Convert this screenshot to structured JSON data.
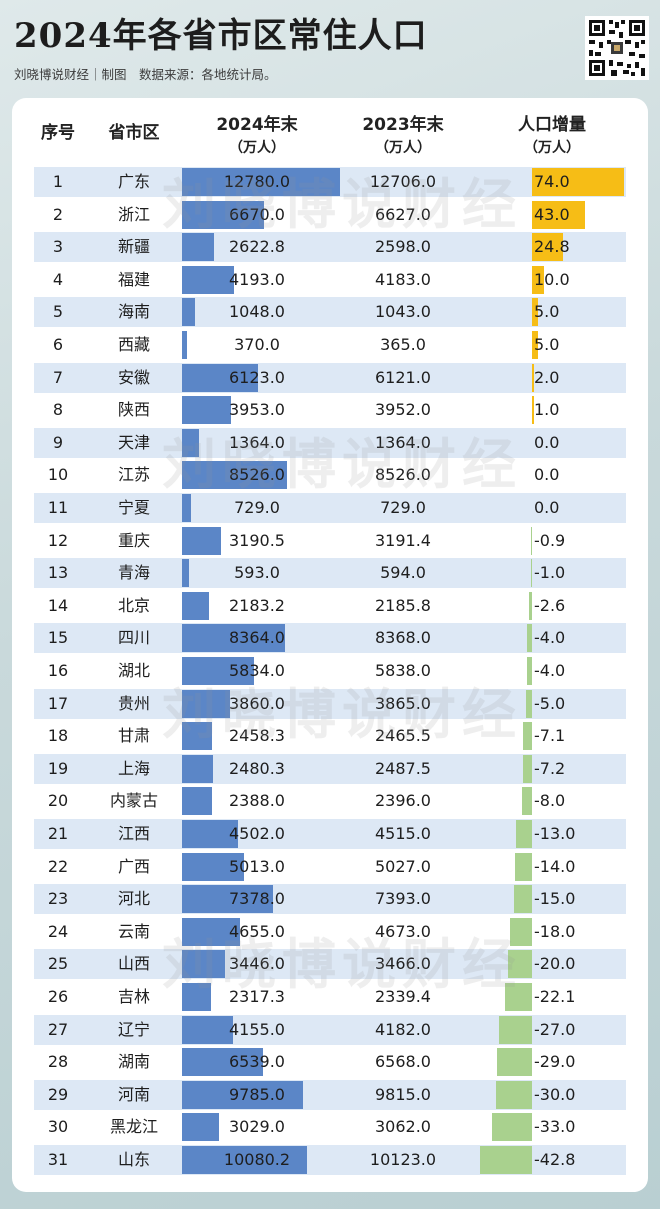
{
  "title": "2024年各省市区常住人口",
  "subtitle": "刘晓博说财经｜制图　数据来源：各地统计局。",
  "watermark": "刘晓博说财经",
  "colors": {
    "bar_2024": "#5b86c7",
    "inc_positive": "#f6bd16",
    "inc_negative": "#a9d18e",
    "row_band": "#dde8f5"
  },
  "chart_data": {
    "type": "table",
    "headers": {
      "rank": "序号",
      "region": "省市区",
      "pop2024": [
        "2024年末",
        "（万人）"
      ],
      "pop2023": [
        "2023年末",
        "（万人）"
      ],
      "increase": [
        "人口增量",
        "（万人）"
      ]
    },
    "rows": [
      {
        "rank": "1",
        "region": "广东",
        "pop2024": "12780.0",
        "pop2023": "12706.0",
        "increase": "74.0"
      },
      {
        "rank": "2",
        "region": "浙江",
        "pop2024": "6670.0",
        "pop2023": "6627.0",
        "increase": "43.0"
      },
      {
        "rank": "3",
        "region": "新疆",
        "pop2024": "2622.8",
        "pop2023": "2598.0",
        "increase": "24.8"
      },
      {
        "rank": "4",
        "region": "福建",
        "pop2024": "4193.0",
        "pop2023": "4183.0",
        "increase": "10.0"
      },
      {
        "rank": "5",
        "region": "海南",
        "pop2024": "1048.0",
        "pop2023": "1043.0",
        "increase": "5.0"
      },
      {
        "rank": "6",
        "region": "西藏",
        "pop2024": "370.0",
        "pop2023": "365.0",
        "increase": "5.0"
      },
      {
        "rank": "7",
        "region": "安徽",
        "pop2024": "6123.0",
        "pop2023": "6121.0",
        "increase": "2.0"
      },
      {
        "rank": "8",
        "region": "陕西",
        "pop2024": "3953.0",
        "pop2023": "3952.0",
        "increase": "1.0"
      },
      {
        "rank": "9",
        "region": "天津",
        "pop2024": "1364.0",
        "pop2023": "1364.0",
        "increase": "0.0"
      },
      {
        "rank": "10",
        "region": "江苏",
        "pop2024": "8526.0",
        "pop2023": "8526.0",
        "increase": "0.0"
      },
      {
        "rank": "11",
        "region": "宁夏",
        "pop2024": "729.0",
        "pop2023": "729.0",
        "increase": "0.0"
      },
      {
        "rank": "12",
        "region": "重庆",
        "pop2024": "3190.5",
        "pop2023": "3191.4",
        "increase": "-0.9"
      },
      {
        "rank": "13",
        "region": "青海",
        "pop2024": "593.0",
        "pop2023": "594.0",
        "increase": "-1.0"
      },
      {
        "rank": "14",
        "region": "北京",
        "pop2024": "2183.2",
        "pop2023": "2185.8",
        "increase": "-2.6"
      },
      {
        "rank": "15",
        "region": "四川",
        "pop2024": "8364.0",
        "pop2023": "8368.0",
        "increase": "-4.0"
      },
      {
        "rank": "16",
        "region": "湖北",
        "pop2024": "5834.0",
        "pop2023": "5838.0",
        "increase": "-4.0"
      },
      {
        "rank": "17",
        "region": "贵州",
        "pop2024": "3860.0",
        "pop2023": "3865.0",
        "increase": "-5.0"
      },
      {
        "rank": "18",
        "region": "甘肃",
        "pop2024": "2458.3",
        "pop2023": "2465.5",
        "increase": "-7.1"
      },
      {
        "rank": "19",
        "region": "上海",
        "pop2024": "2480.3",
        "pop2023": "2487.5",
        "increase": "-7.2"
      },
      {
        "rank": "20",
        "region": "内蒙古",
        "pop2024": "2388.0",
        "pop2023": "2396.0",
        "increase": "-8.0"
      },
      {
        "rank": "21",
        "region": "江西",
        "pop2024": "4502.0",
        "pop2023": "4515.0",
        "increase": "-13.0"
      },
      {
        "rank": "22",
        "region": "广西",
        "pop2024": "5013.0",
        "pop2023": "5027.0",
        "increase": "-14.0"
      },
      {
        "rank": "23",
        "region": "河北",
        "pop2024": "7378.0",
        "pop2023": "7393.0",
        "increase": "-15.0"
      },
      {
        "rank": "24",
        "region": "云南",
        "pop2024": "4655.0",
        "pop2023": "4673.0",
        "increase": "-18.0"
      },
      {
        "rank": "25",
        "region": "山西",
        "pop2024": "3446.0",
        "pop2023": "3466.0",
        "increase": "-20.0"
      },
      {
        "rank": "26",
        "region": "吉林",
        "pop2024": "2317.3",
        "pop2023": "2339.4",
        "increase": "-22.1"
      },
      {
        "rank": "27",
        "region": "辽宁",
        "pop2024": "4155.0",
        "pop2023": "4182.0",
        "increase": "-27.0"
      },
      {
        "rank": "28",
        "region": "湖南",
        "pop2024": "6539.0",
        "pop2023": "6568.0",
        "increase": "-29.0"
      },
      {
        "rank": "29",
        "region": "河南",
        "pop2024": "9785.0",
        "pop2023": "9815.0",
        "increase": "-30.0"
      },
      {
        "rank": "30",
        "region": "黑龙江",
        "pop2024": "3029.0",
        "pop2023": "3062.0",
        "increase": "-33.0"
      },
      {
        "rank": "31",
        "region": "山东",
        "pop2024": "10080.2",
        "pop2023": "10123.0",
        "increase": "-42.8"
      }
    ]
  }
}
